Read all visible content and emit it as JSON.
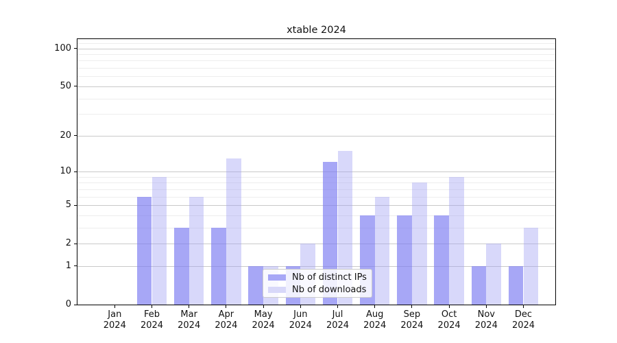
{
  "chart_data": {
    "type": "bar",
    "title": "xtable 2024",
    "categories": [
      "Jan 2024",
      "Feb 2024",
      "Mar 2024",
      "Apr 2024",
      "May 2024",
      "Jun 2024",
      "Jul 2024",
      "Aug 2024",
      "Sep 2024",
      "Oct 2024",
      "Nov 2024",
      "Dec 2024"
    ],
    "month_labels": [
      {
        "month": "Jan",
        "year": "2024"
      },
      {
        "month": "Feb",
        "year": "2024"
      },
      {
        "month": "Mar",
        "year": "2024"
      },
      {
        "month": "Apr",
        "year": "2024"
      },
      {
        "month": "May",
        "year": "2024"
      },
      {
        "month": "Jun",
        "year": "2024"
      },
      {
        "month": "Jul",
        "year": "2024"
      },
      {
        "month": "Aug",
        "year": "2024"
      },
      {
        "month": "Sep",
        "year": "2024"
      },
      {
        "month": "Oct",
        "year": "2024"
      },
      {
        "month": "Nov",
        "year": "2024"
      },
      {
        "month": "Dec",
        "year": "2024"
      }
    ],
    "series": [
      {
        "name": "Nb of distinct IPs",
        "color": "rgba(121,121,242,0.66)",
        "solid": "#a7a7f6",
        "values": [
          0,
          6,
          3,
          3,
          1,
          1,
          12,
          4,
          4,
          4,
          1,
          1
        ]
      },
      {
        "name": "Nb of downloads",
        "color": "rgba(163,163,242,0.42)",
        "solid": "#d8d8f9",
        "values": [
          0,
          9,
          6,
          13,
          1,
          2,
          15,
          6,
          8,
          9,
          2,
          3
        ]
      }
    ],
    "y_axis": {
      "scale": "log1p",
      "ticks": [
        0,
        1,
        2,
        5,
        10,
        20,
        50,
        100
      ],
      "minor_ticks": [
        3,
        4,
        6,
        7,
        8,
        9,
        30,
        40,
        60,
        70,
        80,
        90,
        110
      ],
      "max_visible": 118
    },
    "legend": {
      "position": "bottom-center"
    },
    "grid": {
      "major_color": "#c9c9c9",
      "minor_color": "#ededed",
      "spine_color": "#000000"
    }
  }
}
